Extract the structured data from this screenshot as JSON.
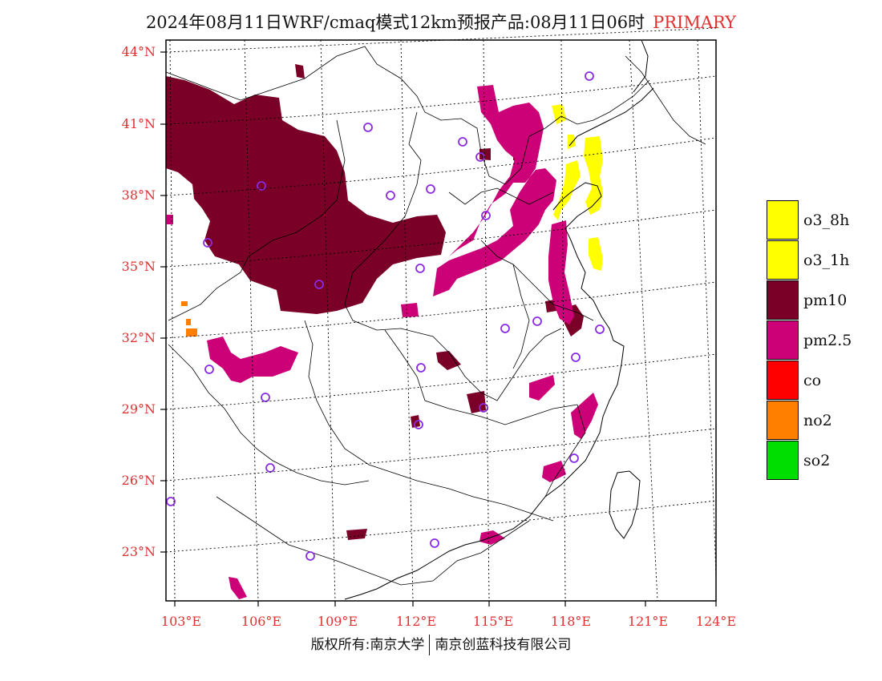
{
  "title": {
    "text": "2024年08月11日WRF/cmaq模式12km预报产品:08月11日06时",
    "tag": "PRIMARY"
  },
  "lat_labels": [
    "44°N",
    "41°N",
    "38°N",
    "35°N",
    "32°N",
    "29°N",
    "26°N",
    "23°N"
  ],
  "lon_labels": [
    "103°E",
    "106°E",
    "109°E",
    "112°E",
    "115°E",
    "118°E",
    "121°E",
    "124°E"
  ],
  "legend": [
    {
      "label": "o3_8h",
      "color": "#ffff00"
    },
    {
      "label": "o3_1h",
      "color": "#ffff00"
    },
    {
      "label": "pm10",
      "color": "#7a0028"
    },
    {
      "label": "pm2.5",
      "color": "#cc0077"
    },
    {
      "label": "co",
      "color": "#ff0000"
    },
    {
      "label": "no2",
      "color": "#ff7f00"
    },
    {
      "label": "so2",
      "color": "#00dd00"
    }
  ],
  "copyright": {
    "left": "版权所有:南京大学",
    "right": "南京创蓝科技有限公司"
  },
  "colors": {
    "axis_label": "#e03030",
    "station_marker": "#8a2be2",
    "boundary": "#000000"
  }
}
